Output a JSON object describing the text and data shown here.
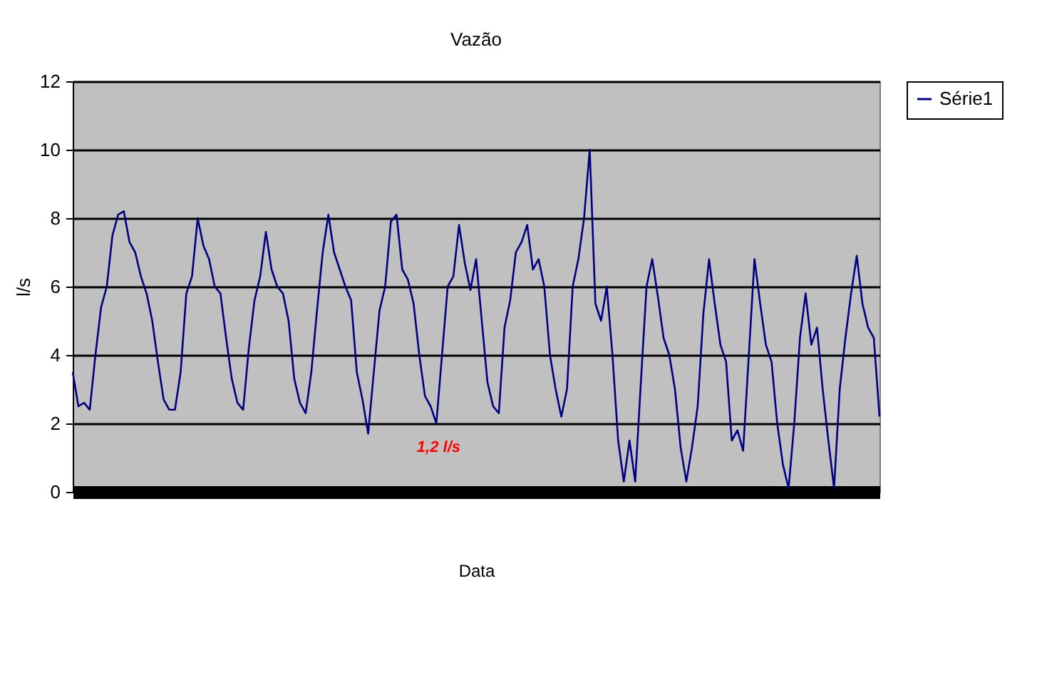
{
  "chart_data": {
    "type": "line",
    "title": "Vazão",
    "xlabel": "Data",
    "ylabel": "l/s",
    "categories": [
      null,
      null,
      null,
      null,
      null,
      null,
      null,
      null,
      null,
      null,
      null,
      null,
      null,
      null,
      null,
      null,
      null,
      null,
      null,
      null,
      null,
      null,
      null,
      null,
      null,
      null,
      null,
      null,
      null,
      null,
      null,
      null,
      null,
      null,
      null,
      null,
      null,
      null,
      null,
      null,
      null,
      null,
      null,
      null,
      null,
      null,
      null,
      null,
      null,
      null,
      null,
      null,
      null,
      null,
      null,
      null,
      null,
      null,
      null,
      null,
      null,
      null,
      null,
      null,
      null,
      null,
      null,
      null,
      null,
      null,
      null,
      null,
      null,
      null,
      null,
      null,
      null,
      null,
      null,
      null,
      null,
      null,
      null,
      null,
      null,
      null,
      null,
      null,
      null,
      null,
      null,
      null,
      null,
      null,
      null,
      null,
      null,
      null,
      null,
      null,
      null,
      null,
      null,
      null,
      null,
      null,
      null,
      null,
      null,
      null,
      null,
      null,
      null,
      null,
      null,
      null,
      null,
      null,
      null,
      null,
      null,
      null,
      null,
      null,
      null,
      null,
      null,
      null,
      null,
      null,
      null,
      null,
      null,
      null,
      null,
      null,
      null,
      null,
      null,
      null,
      null,
      null,
      null
    ],
    "series": [
      {
        "name": "Série1",
        "color": "#000080",
        "values": [
          3.5,
          2.5,
          2.6,
          2.4,
          4,
          5.4,
          6,
          7.5,
          8.1,
          8.2,
          7.3,
          7,
          6.3,
          5.8,
          5,
          3.8,
          2.7,
          2.4,
          2.4,
          3.5,
          5.8,
          6.3,
          8,
          7.2,
          6.8,
          6,
          5.8,
          4.5,
          3.3,
          2.6,
          2.4,
          4.2,
          5.6,
          6.3,
          7.6,
          6.5,
          6,
          5.8,
          5,
          3.3,
          2.6,
          2.3,
          3.5,
          5.3,
          7,
          8.1,
          7,
          6.5,
          6,
          5.6,
          3.5,
          2.7,
          1.7,
          3.5,
          5.3,
          6,
          7.9,
          8.1,
          6.5,
          6.2,
          5.5,
          4,
          2.8,
          2.5,
          2,
          4,
          6,
          6.3,
          7.8,
          6.7,
          5.9,
          6.8,
          5,
          3.2,
          2.5,
          2.3,
          4.8,
          5.6,
          7,
          7.3,
          7.8,
          6.5,
          6.8,
          6,
          4,
          3,
          2.2,
          3,
          6,
          6.8,
          8,
          10,
          5.5,
          5,
          6,
          4,
          1.5,
          0.3,
          1.5,
          0.3,
          3.2,
          6,
          6.8,
          5.7,
          4.5,
          4,
          3,
          1.3,
          0.3,
          1.3,
          2.5,
          5.2,
          6.8,
          5.5,
          4.3,
          3.8,
          1.5,
          1.8,
          1.2,
          4,
          6.8,
          5.5,
          4.3,
          3.8,
          2,
          0.8,
          0.1,
          2,
          4.5,
          5.8,
          4.3,
          4.8,
          3,
          1.5,
          0.1,
          3,
          4.5,
          5.8,
          6.9,
          5.5,
          4.8,
          4.5,
          2.2
        ]
      }
    ],
    "ylim": [
      0,
      12
    ],
    "yticks": [
      0,
      2,
      4,
      6,
      8,
      10,
      12
    ],
    "grid": "y",
    "legend": "right",
    "marker": "none",
    "line_style": "solid",
    "annotations": [
      "1,2 l/s"
    ]
  }
}
